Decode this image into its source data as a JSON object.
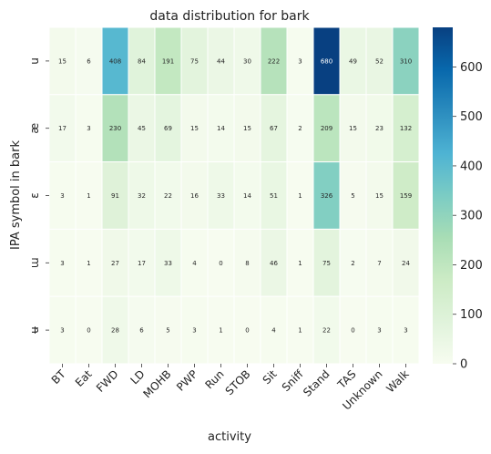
{
  "chart_data": {
    "type": "heatmap",
    "title": "data distribution for bark",
    "xlabel": "activity",
    "ylabel": "IPA symbol in bark",
    "x_categories": [
      "BT",
      "Eat",
      "FWD",
      "LD",
      "MOHB",
      "PWP",
      "Run",
      "STOB",
      "Sit",
      "Sniff",
      "Stand",
      "TAS",
      "Unknown",
      "Walk"
    ],
    "y_categories": [
      "u",
      "æ",
      "ɛ",
      "ɯ",
      "ʉ"
    ],
    "values": [
      [
        15,
        6,
        408,
        84,
        191,
        75,
        44,
        30,
        222,
        3,
        680,
        49,
        52,
        310
      ],
      [
        17,
        3,
        230,
        45,
        69,
        15,
        14,
        15,
        67,
        2,
        209,
        15,
        23,
        132
      ],
      [
        3,
        1,
        91,
        32,
        22,
        16,
        33,
        14,
        51,
        1,
        326,
        5,
        15,
        159
      ],
      [
        3,
        1,
        27,
        17,
        33,
        4,
        0,
        8,
        46,
        1,
        75,
        2,
        7,
        24
      ],
      [
        3,
        0,
        28,
        6,
        5,
        3,
        1,
        0,
        4,
        1,
        22,
        0,
        3,
        3
      ]
    ],
    "colorbar": {
      "vmin": 0,
      "vmax": 680,
      "ticks": [
        0,
        100,
        200,
        300,
        400,
        500,
        600
      ],
      "colormap": "GnBu",
      "stops": [
        "#f7fcf0",
        "#e0f3db",
        "#ccebc5",
        "#a8ddb5",
        "#7bccc4",
        "#4eb3d3",
        "#2b8cbe",
        "#0868ac",
        "#084081"
      ]
    },
    "grid": true
  }
}
